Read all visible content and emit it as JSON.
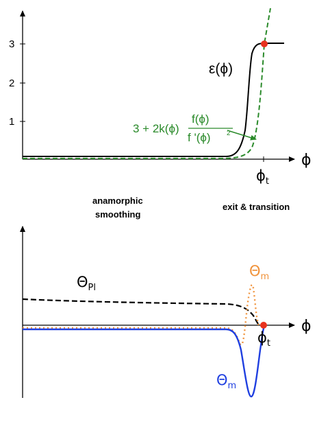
{
  "top_panel": {
    "y_ticks": [
      "1",
      "2",
      "3"
    ],
    "x_label": "ϕ",
    "transition_label": {
      "main": "ϕ",
      "sub": "t"
    },
    "epsilon_label": "ε(ϕ)",
    "green_formula": {
      "prefix": "3 + 2k(ϕ)",
      "numerator": "f(ϕ)",
      "denominator": "f '(ϕ)",
      "exponent": "2"
    }
  },
  "captions": {
    "left_line1": "anamorphic",
    "left_line2": "smoothing",
    "right": "exit & transition"
  },
  "bottom_panel": {
    "x_label": "ϕ",
    "transition_label": {
      "main": "ϕ",
      "sub": "t"
    },
    "theta_pl": {
      "main": "Θ",
      "sub": "Pl"
    },
    "theta_m_orange": {
      "main": "Θ",
      "sub": "m"
    },
    "theta_m_blue": {
      "main": "Θ",
      "sub": "m"
    }
  },
  "colors": {
    "black_curve": "#000000",
    "green_curve": "#2a8a2a",
    "orange_curve": "#f0923a",
    "blue_curve": "#1f3fe0",
    "marker": "#e8321e"
  }
}
